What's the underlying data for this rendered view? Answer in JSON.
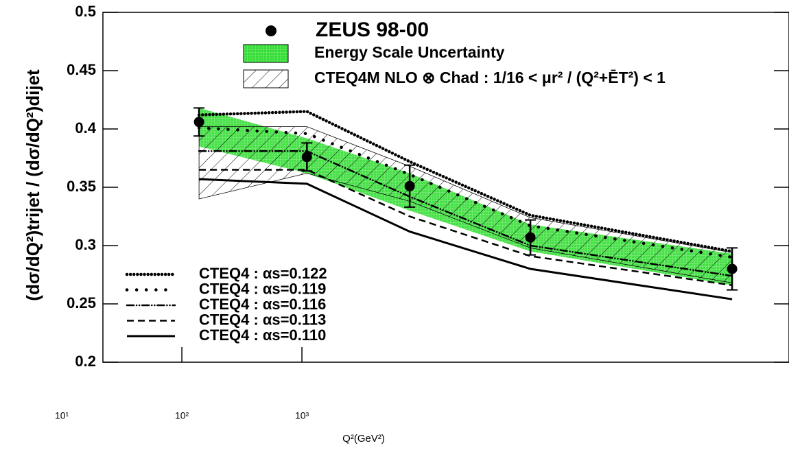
{
  "chart_data": {
    "type": "line",
    "x_label": "Q²(GeV²)",
    "y_label": "(dσ/dQ²)trijet / (dσ/dQ²)dijet",
    "log_x": true,
    "xlim": [
      22,
      11400000
    ],
    "xticks": [
      {
        "value": 10,
        "label": "10¹"
      },
      {
        "value": 100,
        "label": "10²"
      },
      {
        "value": 1000,
        "label": "10³"
      }
    ],
    "ylim": [
      0.2,
      0.5
    ],
    "yticks": [
      0.2,
      0.25,
      0.3,
      0.35,
      0.4,
      0.45,
      0.5
    ],
    "x": [
      139,
      1100,
      7900,
      80000,
      3830000
    ],
    "data": {
      "name": "ZEUS 98-00",
      "color": "#000000",
      "values": [
        0.406,
        0.376,
        0.351,
        0.307,
        0.28
      ],
      "errors": [
        0.012,
        0.012,
        0.018,
        0.015,
        0.018
      ]
    },
    "bands": [
      {
        "name": "Energy Scale Uncertainty",
        "color": "#33dd33",
        "low": [
          0.385,
          0.362,
          0.33,
          0.295,
          0.266
        ],
        "high": [
          0.418,
          0.392,
          0.362,
          0.318,
          0.293
        ]
      },
      {
        "name": "CTEQ4M NLO ⊗ Chad : 1/16 < μr² / (Q²+ĒT²) < 1",
        "color": "#000000",
        "low": [
          0.34,
          0.362,
          0.338,
          0.298,
          0.268
        ],
        "high": [
          0.402,
          0.402,
          0.368,
          0.324,
          0.294
        ]
      }
    ],
    "series": [
      {
        "name": "CTEQ4 : αs=0.122",
        "color": "#000000",
        "values": [
          0.412,
          0.415,
          0.372,
          0.326,
          0.295
        ]
      },
      {
        "name": "CTEQ4 : αs=0.119",
        "color": "#000000",
        "values": [
          0.401,
          0.396,
          0.361,
          0.317,
          0.29
        ]
      },
      {
        "name": "CTEQ4 : αs=0.116",
        "color": "#000000",
        "values": [
          0.381,
          0.381,
          0.342,
          0.3,
          0.274
        ]
      },
      {
        "name": "CTEQ4 : αs=0.113",
        "color": "#000000",
        "values": [
          0.365,
          0.365,
          0.325,
          0.291,
          0.266
        ]
      },
      {
        "name": "CTEQ4 : αs=0.110",
        "color": "#000000",
        "values": [
          0.357,
          0.353,
          0.312,
          0.28,
          0.254
        ]
      }
    ]
  }
}
